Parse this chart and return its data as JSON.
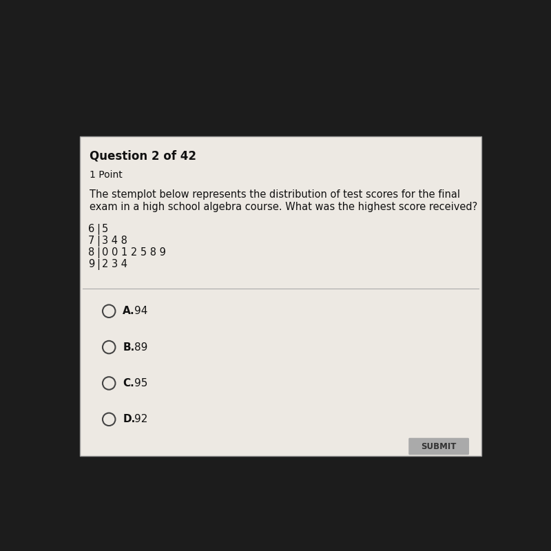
{
  "title_bold": "Question 2 of 42",
  "subtitle": "1 Point",
  "question_line1": "The stemplot below represents the distribution of test scores for the final",
  "question_line2": "exam in a high school algebra course. What was the highest score received?",
  "stems": [
    "6",
    "7",
    "8",
    "9"
  ],
  "leaves": [
    "5",
    "3 4 8",
    "0 0 1 2 5 8 9",
    "2 3 4"
  ],
  "choices": [
    {
      "letter": "A.",
      "text": "94"
    },
    {
      "letter": "B.",
      "text": "89"
    },
    {
      "letter": "C.",
      "text": "95"
    },
    {
      "letter": "D.",
      "text": "92"
    }
  ],
  "submit_label": "SUBMIT",
  "bg_top": "#1c1c1c",
  "bg_card": "#ede9e3",
  "bg_submit": "#aaaaaa",
  "text_color": "#111111",
  "font_size_title": 12,
  "font_size_subtitle": 10,
  "font_size_question": 10.5,
  "font_size_stem": 10.5,
  "font_size_choice": 11
}
